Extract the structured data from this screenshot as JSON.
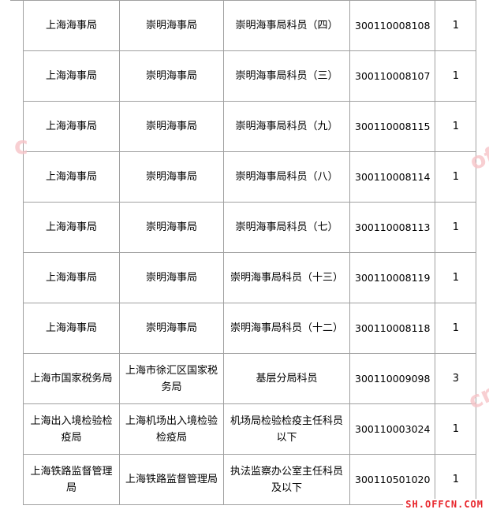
{
  "table": {
    "rows": [
      {
        "dept": "上海海事局",
        "unit": "崇明海事局",
        "position": "崇明海事局科员（四）",
        "code": "300110008108",
        "count": "1"
      },
      {
        "dept": "上海海事局",
        "unit": "崇明海事局",
        "position": "崇明海事局科员（三）",
        "code": "300110008107",
        "count": "1"
      },
      {
        "dept": "上海海事局",
        "unit": "崇明海事局",
        "position": "崇明海事局科员（九）",
        "code": "300110008115",
        "count": "1"
      },
      {
        "dept": "上海海事局",
        "unit": "崇明海事局",
        "position": "崇明海事局科员（八）",
        "code": "300110008114",
        "count": "1"
      },
      {
        "dept": "上海海事局",
        "unit": "崇明海事局",
        "position": "崇明海事局科员（七）",
        "code": "300110008113",
        "count": "1"
      },
      {
        "dept": "上海海事局",
        "unit": "崇明海事局",
        "position": "崇明海事局科员（十三）",
        "code": "300110008119",
        "count": "1"
      },
      {
        "dept": "上海海事局",
        "unit": "崇明海事局",
        "position": "崇明海事局科员（十二）",
        "code": "300110008118",
        "count": "1"
      },
      {
        "dept": "上海市国家税务局",
        "unit": "上海市徐汇区国家税务局",
        "position": "基层分局科员",
        "code": "300110009098",
        "count": "3"
      },
      {
        "dept": "上海出入境检验检疫局",
        "unit": "上海机场出入境检验检疫局",
        "position": "机场局检验检疫主任科员以下",
        "code": "300110003024",
        "count": "1"
      },
      {
        "dept": "上海铁路监督管理局",
        "unit": "上海铁路监督管理局",
        "position": "执法监察办公室主任科员及以下",
        "code": "300110501020",
        "count": "1"
      }
    ]
  },
  "watermark": {
    "text": "offcn",
    "logo": "SH.OFFCN.COM",
    "color": "#e8262c"
  }
}
